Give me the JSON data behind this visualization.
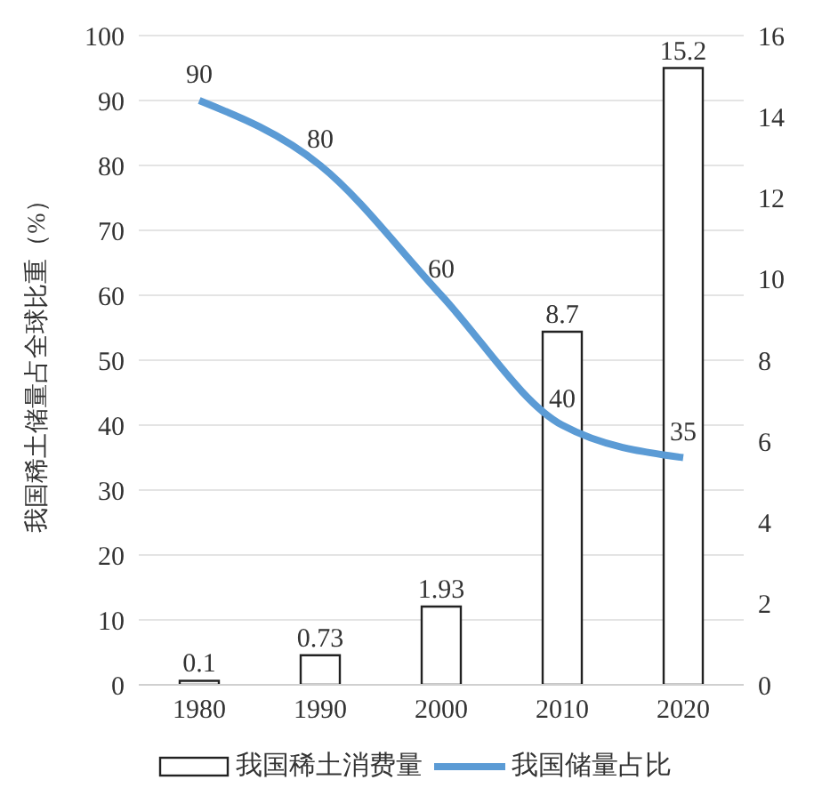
{
  "chart_data": {
    "type": "bar",
    "ylabel": "我国稀土储量占全球比重（%）",
    "categories": [
      "1980",
      "1990",
      "2000",
      "2010",
      "2020"
    ],
    "series": [
      {
        "name": "我国稀土消费量",
        "color": "#ffffff",
        "axis": "y2",
        "values": [
          0.1,
          0.73,
          1.93,
          8.7,
          15.2
        ]
      },
      {
        "name": "我国储量占比",
        "type": "line",
        "color": "#5b9bd5",
        "values": [
          90,
          80,
          60,
          40,
          35
        ]
      }
    ],
    "ylim": [
      0,
      100
    ],
    "yticks": [
      0,
      10,
      20,
      30,
      40,
      50,
      60,
      70,
      80,
      90,
      100
    ],
    "y2lim": [
      0,
      16
    ],
    "y2ticks": [
      0,
      2,
      4,
      6,
      8,
      10,
      12,
      14,
      16
    ],
    "grid": "y",
    "legend": "bottom",
    "data_labels": true,
    "marker": "none",
    "line_style": "solid"
  }
}
